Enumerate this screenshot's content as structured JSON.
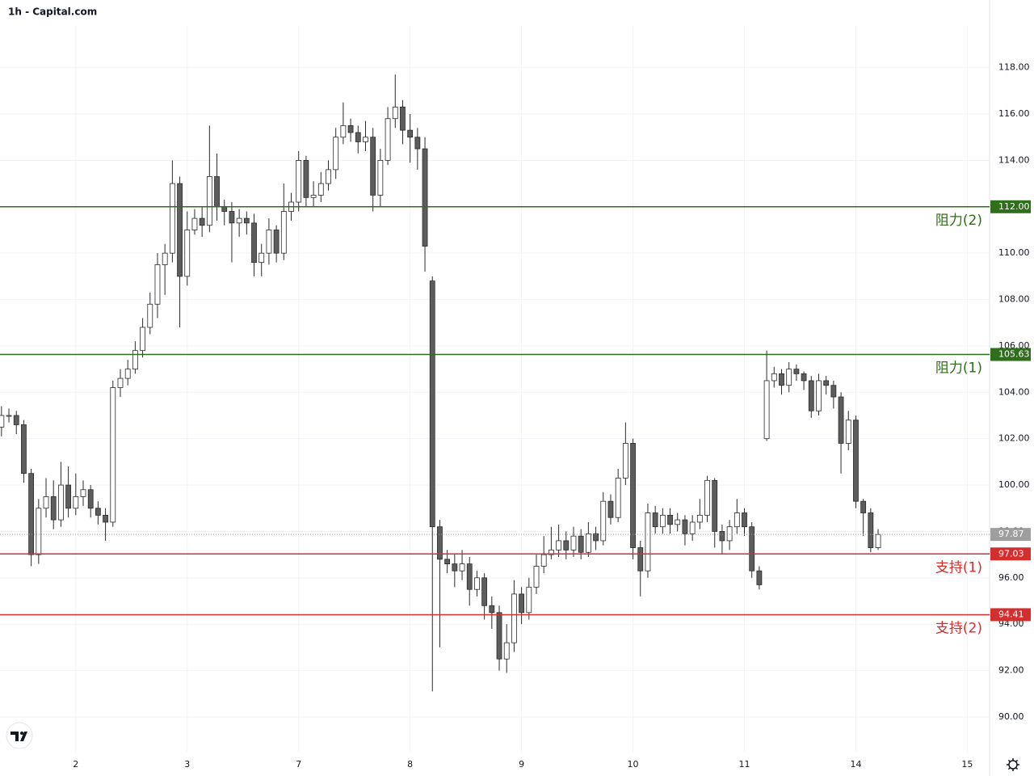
{
  "chart_data": {
    "type": "candlestick",
    "title": "1h - Capital.com",
    "xlim": [
      -0.2,
      133
    ],
    "ylim": [
      88.5,
      119.8
    ],
    "xticks": [
      {
        "value": 10,
        "label": "2"
      },
      {
        "value": 25,
        "label": "3"
      },
      {
        "value": 40,
        "label": "7"
      },
      {
        "value": 55,
        "label": "8"
      },
      {
        "value": 70,
        "label": "9"
      },
      {
        "value": 85,
        "label": "10"
      },
      {
        "value": 100,
        "label": "11"
      },
      {
        "value": 115,
        "label": "14"
      },
      {
        "value": 130,
        "label": "15"
      }
    ],
    "yticks": [
      {
        "value": 90,
        "label": "90.00"
      },
      {
        "value": 92,
        "label": "92.00"
      },
      {
        "value": 94,
        "label": "94.00"
      },
      {
        "value": 96,
        "label": "96.00"
      },
      {
        "value": 98,
        "label": "98.00"
      },
      {
        "value": 100,
        "label": "100.00"
      },
      {
        "value": 102,
        "label": "102.00"
      },
      {
        "value": 104,
        "label": "104.00"
      },
      {
        "value": 106,
        "label": "106.00"
      },
      {
        "value": 108,
        "label": "108.00"
      },
      {
        "value": 110,
        "label": "110.00"
      },
      {
        "value": 112,
        "label": "112.00"
      },
      {
        "value": 114,
        "label": "114.00"
      },
      {
        "value": 116,
        "label": "116.00"
      },
      {
        "value": 118,
        "label": "118.00"
      }
    ],
    "grid": true,
    "up_color": "#ffffff",
    "down_color": "#5d5d5d",
    "wick_color": "#2a2a2a",
    "open": [
      102.5,
      103,
      103,
      102.6,
      100.5,
      97,
      99,
      99.5,
      98.5,
      100,
      99,
      99.5,
      99.8,
      99,
      98.7,
      98.4,
      104.2,
      104.6,
      105,
      105.8,
      106.8,
      107.8,
      109.5,
      110,
      113,
      109,
      111,
      111.5,
      111.2,
      113.3,
      112,
      111.8,
      111.3,
      111.5,
      111.3,
      109.6,
      110,
      111,
      110,
      111.8,
      112.2,
      114,
      112.4,
      112.5,
      113,
      113.6,
      115,
      115.5,
      115.2,
      114.8,
      115,
      112.5,
      114,
      115.8,
      116.3,
      115.3,
      115,
      114.5,
      108.8,
      98.2,
      96.8,
      96.6,
      96.3,
      96.6,
      95.5,
      96,
      94.8,
      94.5,
      92.5,
      93.2,
      95.3,
      94.5,
      95.6,
      96.5,
      97,
      97.2,
      97.6,
      97.2,
      97.8,
      97.1,
      97.9,
      97.6,
      99.3,
      98.6,
      100.3,
      101.8,
      97.3,
      96.3,
      98.8,
      98.2,
      98.7,
      98.3,
      98.5,
      97.9,
      98.4,
      98.7,
      100.2,
      98,
      97.6,
      98.2,
      98.8,
      98.2,
      96.3,
      102,
      104.5,
      104.8,
      104.3,
      105,
      104.8,
      104.5,
      103.2,
      104.5,
      104.3,
      103.8,
      101.8,
      102.8,
      99.3,
      98.8,
      97.3
    ],
    "high": [
      103.4,
      103.3,
      103.2,
      102.8,
      100.7,
      99.4,
      100.3,
      100.2,
      101,
      100.8,
      100.5,
      100.2,
      100,
      99.3,
      99,
      104.5,
      105,
      105.4,
      106.2,
      107.2,
      108.3,
      110,
      110.4,
      114,
      113.3,
      111.8,
      111.9,
      112,
      115.5,
      114.3,
      112.3,
      112.2,
      111.9,
      111.8,
      111.7,
      110.4,
      111.5,
      111.2,
      113,
      112.6,
      114.4,
      114.2,
      113.1,
      113.5,
      114,
      115.4,
      116.5,
      115.8,
      115.5,
      115.7,
      115.4,
      114.5,
      116.3,
      117.7,
      116.6,
      116,
      115.4,
      115,
      109,
      98.5,
      97.2,
      97,
      97.2,
      96.9,
      96.3,
      96.2,
      95.2,
      94.8,
      94,
      95.9,
      95.6,
      96,
      97,
      97.8,
      98.2,
      98.3,
      98,
      98.2,
      98.1,
      98.4,
      98.2,
      99.7,
      99.6,
      100.7,
      102.7,
      102,
      97.6,
      99.2,
      99.1,
      99,
      99,
      98.8,
      98.7,
      98.7,
      99.4,
      100.4,
      100.3,
      98.3,
      98.5,
      99.4,
      99,
      98.4,
      96.5,
      105.8,
      105.1,
      105,
      105.3,
      105.2,
      104.9,
      104.7,
      104.8,
      104.7,
      104.5,
      104,
      103.2,
      103,
      99.4,
      99,
      98.1
    ],
    "low": [
      102.1,
      102.7,
      102.2,
      100.1,
      96.5,
      96.6,
      98.6,
      98.1,
      98.2,
      98.6,
      98.7,
      99.1,
      98.6,
      98.3,
      97.6,
      98.2,
      103.8,
      104.3,
      104.8,
      105.5,
      106.5,
      107.2,
      108.2,
      109.6,
      106.8,
      108.6,
      110.8,
      110.7,
      110.9,
      111.4,
      111.2,
      109.6,
      110.7,
      110.8,
      109,
      109,
      109.5,
      109.6,
      109.7,
      111.4,
      111.8,
      112,
      112,
      112.2,
      112.7,
      113.2,
      114.7,
      114.8,
      114.3,
      114.4,
      111.8,
      112,
      113.8,
      115.4,
      114.7,
      113.9,
      113.6,
      109.2,
      91.1,
      93,
      96.2,
      95.6,
      95.9,
      94.8,
      95.2,
      94.2,
      93.8,
      92,
      91.9,
      92.8,
      94,
      94.2,
      95.3,
      96.2,
      96.8,
      96.9,
      96.8,
      96.9,
      96.8,
      96.9,
      97.2,
      97.4,
      98.3,
      98.4,
      100,
      96.8,
      95.2,
      96,
      97.9,
      97.9,
      97.9,
      98,
      97.4,
      97.6,
      98.1,
      98.4,
      97.3,
      97,
      97.2,
      97.9,
      97.8,
      96,
      95.5,
      101.9,
      104.2,
      103.9,
      104,
      104.5,
      104.1,
      102.9,
      103,
      103.9,
      103.3,
      100.5,
      101.5,
      99,
      97.8,
      97.1,
      97.2
    ],
    "close": [
      103,
      103,
      102.6,
      100.5,
      97,
      99,
      99.5,
      98.5,
      100,
      99,
      99.5,
      99.8,
      99,
      98.7,
      98.4,
      104.2,
      104.6,
      105,
      105.8,
      106.8,
      107.8,
      109.5,
      110,
      113,
      109,
      111,
      111.5,
      111.2,
      113.3,
      112,
      111.8,
      111.3,
      111.5,
      111.3,
      109.6,
      110,
      111,
      110,
      111.8,
      112.2,
      114,
      112.4,
      112.5,
      113,
      113.6,
      115,
      115.5,
      115.2,
      114.8,
      115,
      112.5,
      114,
      115.8,
      116.3,
      115.3,
      115,
      114.5,
      110.3,
      98.2,
      96.8,
      96.6,
      96.3,
      96.6,
      95.5,
      96,
      94.8,
      94.5,
      92.5,
      93.2,
      95.3,
      94.5,
      95.6,
      96.5,
      97,
      97.2,
      97.6,
      97.2,
      97.8,
      97.1,
      97.9,
      97.6,
      99.3,
      98.6,
      100.3,
      101.8,
      97.3,
      96.3,
      98.8,
      98.2,
      98.7,
      98.3,
      98.5,
      97.9,
      98.4,
      98.7,
      100.2,
      98,
      97.6,
      98.2,
      98.8,
      98.2,
      96.3,
      95.7,
      104.5,
      104.8,
      104.3,
      105,
      104.8,
      104.5,
      103.2,
      104.5,
      104.3,
      103.8,
      101.8,
      102.8,
      99.3,
      98.8,
      97.3,
      97.87
    ],
    "levels": [
      {
        "name": "阻力(2)",
        "value": 112,
        "label": "112.00",
        "color": "#2f6e1a"
      },
      {
        "name": "阻力(1)",
        "value": 105.63,
        "label": "105.63",
        "color": "#2f6e1a"
      },
      {
        "name": "支持(1)",
        "value": 97.03,
        "label": "97.03",
        "color": "#d32f2f"
      },
      {
        "name": "支持(2)",
        "value": 94.41,
        "label": "94.41",
        "color": "#d32f2f"
      }
    ],
    "last_price": {
      "value": 97.87,
      "label": "97.87",
      "color": "#9e9e9e"
    }
  }
}
